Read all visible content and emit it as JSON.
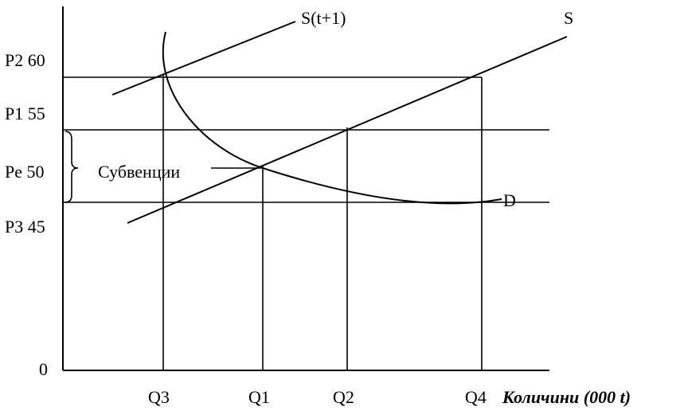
{
  "y_labels": {
    "p2": "P2 60",
    "p1": "P1 55",
    "pe": "Pe 50",
    "p3": "P3 45",
    "zero": "0"
  },
  "x_labels": {
    "q3": "Q3",
    "q1": "Q1",
    "q2": "Q2",
    "q4": "Q4"
  },
  "x_axis_title": "Количини (000 t)",
  "curve_labels": {
    "supply_shifted": "S(t+1)",
    "supply": "S",
    "demand": "D"
  },
  "subsidy_label": "Субвенции"
}
